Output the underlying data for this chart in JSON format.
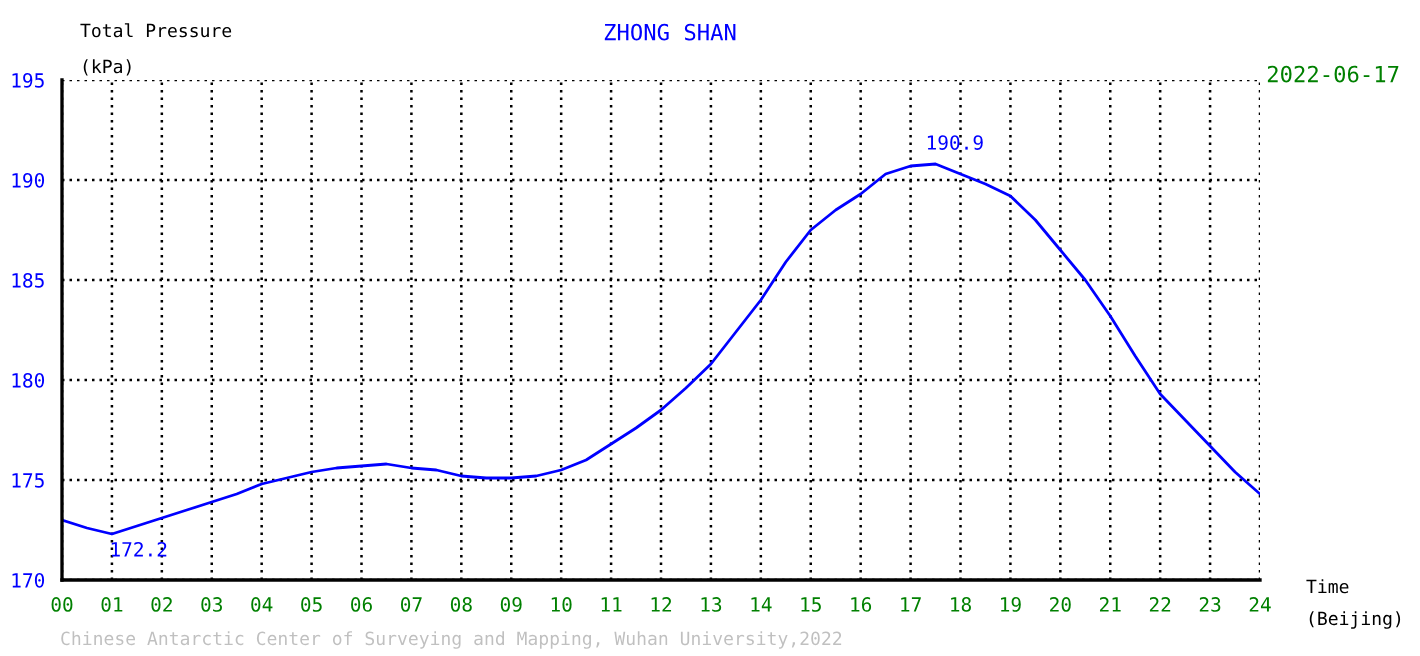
{
  "chart_data": {
    "type": "line",
    "title": "ZHONG SHAN",
    "subtitle": "2022-06-17",
    "ylabel": "Total Pressure\n(kPa)",
    "xlabel": "Time\n(Beijing)",
    "x": [
      0,
      0.5,
      1,
      1.5,
      2,
      2.5,
      3,
      3.5,
      4,
      4.5,
      5,
      5.5,
      6,
      6.5,
      7,
      7.5,
      8,
      8.5,
      9,
      9.5,
      10,
      10.5,
      11,
      11.5,
      12,
      12.5,
      13,
      13.5,
      14,
      14.5,
      15,
      15.5,
      16,
      16.5,
      17,
      17.5,
      18,
      18.5,
      19,
      19.5,
      20,
      20.5,
      21,
      21.5,
      22,
      22.5,
      23,
      23.5,
      24
    ],
    "series": [
      {
        "color": "#0000ff",
        "values": [
          173.0,
          172.6,
          172.3,
          172.7,
          173.1,
          173.5,
          173.9,
          174.3,
          174.8,
          175.1,
          175.4,
          175.6,
          175.7,
          175.8,
          175.6,
          175.5,
          175.2,
          175.1,
          175.1,
          175.2,
          175.5,
          176.0,
          176.8,
          177.6,
          178.5,
          179.6,
          180.8,
          182.4,
          184.0,
          185.9,
          187.5,
          188.5,
          189.3,
          190.3,
          190.7,
          190.8,
          190.3,
          189.8,
          189.2,
          188.0,
          186.5,
          185.0,
          183.2,
          181.2,
          179.3,
          178.0,
          176.7,
          175.4,
          174.3
        ]
      }
    ],
    "xlim": [
      0,
      24
    ],
    "ylim": [
      170,
      195
    ],
    "xticks": [
      {
        "value": 0,
        "label": "00"
      },
      {
        "value": 1,
        "label": "01"
      },
      {
        "value": 2,
        "label": "02"
      },
      {
        "value": 3,
        "label": "03"
      },
      {
        "value": 4,
        "label": "04"
      },
      {
        "value": 5,
        "label": "05"
      },
      {
        "value": 6,
        "label": "06"
      },
      {
        "value": 7,
        "label": "07"
      },
      {
        "value": 8,
        "label": "08"
      },
      {
        "value": 9,
        "label": "09"
      },
      10,
      11,
      12,
      13,
      14,
      15,
      16,
      17,
      18,
      19,
      20,
      21,
      22,
      23,
      24
    ],
    "yticks": [
      170,
      175,
      180,
      185,
      190,
      195
    ],
    "grid": true,
    "legend": false,
    "marker": "none",
    "line_style": "solid",
    "annotations": [
      {
        "text": "172.2",
        "x": 0.95,
        "y": 172.2
      },
      {
        "text": "190.9",
        "x": 17.3,
        "y": 190.9
      },
      "Chinese Antarctic Center of Surveying and Mapping, Wuhan University,2022"
    ]
  }
}
